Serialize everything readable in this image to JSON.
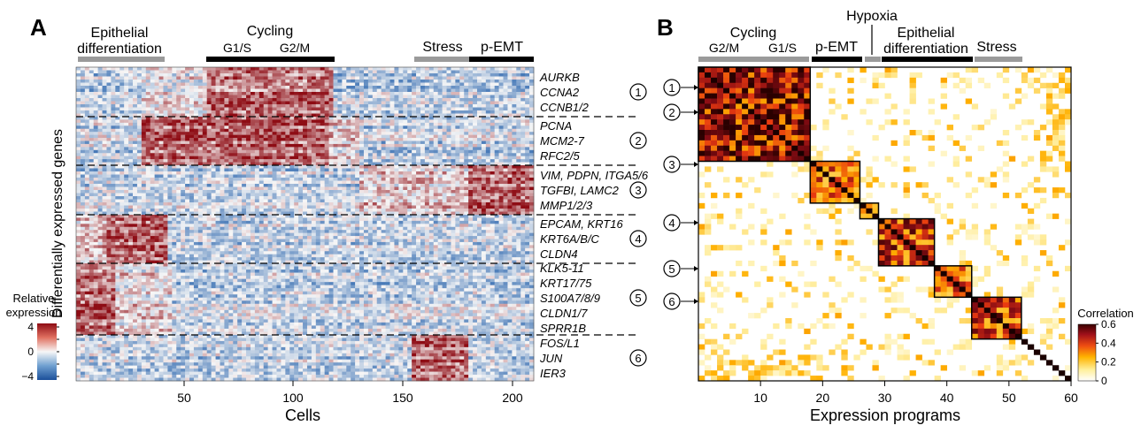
{
  "panel_a": {
    "letter": "A",
    "heatmap_groups": [
      {
        "label": "Epithelial\ndifferentiation",
        "lines": [
          "Epithelial",
          "differentiation"
        ],
        "bar": "gray",
        "sub": []
      },
      {
        "label": "Cycling",
        "lines": [
          "Cycling"
        ],
        "bar": "black",
        "sub": [
          "G1/S",
          "G2/M"
        ]
      },
      {
        "label": "Stress",
        "lines": [
          "Stress"
        ],
        "bar": "gray",
        "sub": []
      },
      {
        "label": "p-EMT",
        "lines": [
          "p-EMT"
        ],
        "bar": "black",
        "sub": []
      }
    ],
    "ylabel": "Differentially expressed genes",
    "xlabel": "Cells",
    "xticks": [
      "50",
      "100",
      "150",
      "200"
    ],
    "colorbar": {
      "title_lines": [
        "Relative",
        "expression"
      ],
      "ticks": [
        "4",
        "2",
        "0",
        "−2",
        "−4"
      ]
    },
    "clusters": [
      {
        "num": "1",
        "genes": [
          "AURKB",
          "CCNA2",
          "CCNB1/2"
        ]
      },
      {
        "num": "2",
        "genes": [
          "PCNA",
          "MCM2-7",
          "RFC2/5"
        ]
      },
      {
        "num": "3",
        "genes": [
          "VIM, PDPN, ITGA5/6",
          "TGFBI, LAMC2",
          "MMP1/2/3"
        ]
      },
      {
        "num": "4",
        "genes": [
          "EPCAM, KRT16",
          "KRT6A/B/C",
          "CLDN4"
        ]
      },
      {
        "num": "5",
        "genes": [
          "KLK5-11",
          "KRT17/75",
          "S100A7/8/9",
          "CLDN1/7",
          "SPRR1B"
        ]
      },
      {
        "num": "6",
        "genes": [
          "FOS/L1",
          "JUN",
          "IER3"
        ]
      }
    ]
  },
  "panel_b": {
    "letter": "B",
    "top_labels": [
      {
        "lines": [
          "Cycling"
        ],
        "bar": "gray",
        "sub": [
          "G2/M",
          "G1/S"
        ]
      },
      {
        "lines": [
          "p-EMT"
        ],
        "bar": "black",
        "sub": []
      },
      {
        "lines": [
          "Hypoxia"
        ],
        "bar": "gray",
        "sub": []
      },
      {
        "lines": [
          "Epithelial",
          "differentiation"
        ],
        "bar": "black",
        "sub": []
      },
      {
        "lines": [
          "Stress"
        ],
        "bar": "gray",
        "sub": []
      }
    ],
    "xlabel": "Expression programs",
    "xticks": [
      "10",
      "20",
      "30",
      "40",
      "50",
      "60"
    ],
    "markers": [
      "1",
      "2",
      "3",
      "4",
      "5",
      "6"
    ],
    "colorbar": {
      "title": "Correlation",
      "ticks": [
        "0.6",
        "0.4",
        "0.2",
        "0"
      ]
    }
  },
  "chart_data": [
    {
      "type": "heatmap",
      "title": "",
      "xlabel": "Cells",
      "ylabel": "Differentially expressed genes",
      "xlim": [
        1,
        210
      ],
      "color_scale": {
        "min": -4,
        "max": 4,
        "low": "#1b5aa8",
        "mid": "#f7f7f7",
        "high": "#8e0c14"
      },
      "gene_blocks": [
        {
          "cluster": 1,
          "genes": [
            "AURKB",
            "CCNA2",
            "CCNB1/2"
          ],
          "high_cells": [
            60,
            118
          ]
        },
        {
          "cluster": 2,
          "genes": [
            "PCNA",
            "MCM2-7",
            "RFC2/5"
          ],
          "high_cells": [
            30,
            115
          ]
        },
        {
          "cluster": 3,
          "genes": [
            "VIM, PDPN, ITGA5/6",
            "TGFBI, LAMC2",
            "MMP1/2/3"
          ],
          "high_cells": [
            180,
            210
          ]
        },
        {
          "cluster": 4,
          "genes": [
            "EPCAM, KRT16",
            "KRT6A/B/C",
            "CLDN4"
          ],
          "high_cells": [
            15,
            42
          ]
        },
        {
          "cluster": 5,
          "genes": [
            "KLK5-11",
            "KRT17/75",
            "S100A7/8/9",
            "CLDN1/7",
            "SPRR1B"
          ],
          "high_cells": [
            1,
            18
          ]
        },
        {
          "cluster": 6,
          "genes": [
            "FOS/L1",
            "JUN",
            "IER3"
          ],
          "high_cells": [
            155,
            180
          ]
        }
      ],
      "cell_groups": [
        {
          "name": "Epithelial differentiation",
          "range": [
            1,
            42
          ]
        },
        {
          "name": "Cycling",
          "range": [
            60,
            118
          ]
        },
        {
          "name": "Stress",
          "range": [
            155,
            180
          ]
        },
        {
          "name": "p-EMT",
          "range": [
            180,
            210
          ]
        }
      ]
    },
    {
      "type": "heatmap",
      "title": "",
      "xlabel": "Expression programs",
      "ylabel": "",
      "n_programs": 60,
      "color_scale": {
        "min": 0,
        "max": 0.6,
        "colors": [
          "#ffffff",
          "#ffeea0",
          "#ffb000",
          "#e83a10",
          "#8a0c14",
          "#2a0000"
        ]
      },
      "diagonal": 1,
      "blocks": [
        {
          "name": "Cycling",
          "programs": [
            1,
            18
          ],
          "corr": 0.5
        },
        {
          "name": "p-EMT",
          "programs": [
            19,
            26
          ],
          "corr": 0.35
        },
        {
          "name": "Hypoxia",
          "programs": [
            27,
            29
          ],
          "corr": 0.3
        },
        {
          "name": "Epithelial differentiation 1",
          "programs": [
            30,
            38
          ],
          "corr": 0.4
        },
        {
          "name": "Epithelial differentiation 2",
          "programs": [
            39,
            44
          ],
          "corr": 0.35
        },
        {
          "name": "Stress",
          "programs": [
            45,
            52
          ],
          "corr": 0.4
        }
      ]
    }
  ]
}
